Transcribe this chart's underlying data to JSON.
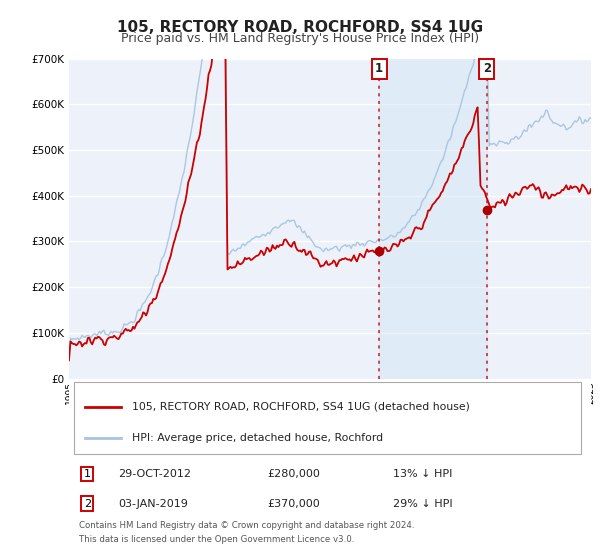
{
  "title": "105, RECTORY ROAD, ROCHFORD, SS4 1UG",
  "subtitle": "Price paid vs. HM Land Registry's House Price Index (HPI)",
  "ylim": [
    0,
    700000
  ],
  "yticks": [
    0,
    100000,
    200000,
    300000,
    400000,
    500000,
    600000,
    700000
  ],
  "ytick_labels": [
    "£0",
    "£100K",
    "£200K",
    "£300K",
    "£400K",
    "£500K",
    "£600K",
    "£700K"
  ],
  "hpi_color": "#a8c4e0",
  "price_color": "#cc0000",
  "marker_color": "#aa0000",
  "vline_color": "#cc0000",
  "shade_color": "#d0e4f5",
  "transaction1_x": 2012.83,
  "transaction1_y": 280000,
  "transaction1_label": "1",
  "transaction2_x": 2019.01,
  "transaction2_y": 370000,
  "transaction2_label": "2",
  "legend_line1": "105, RECTORY ROAD, ROCHFORD, SS4 1UG (detached house)",
  "legend_line2": "HPI: Average price, detached house, Rochford",
  "table_row1_num": "1",
  "table_row1_date": "29-OCT-2012",
  "table_row1_price": "£280,000",
  "table_row1_hpi": "13% ↓ HPI",
  "table_row2_num": "2",
  "table_row2_date": "03-JAN-2019",
  "table_row2_price": "£370,000",
  "table_row2_hpi": "29% ↓ HPI",
  "footnote1": "Contains HM Land Registry data © Crown copyright and database right 2024.",
  "footnote2": "This data is licensed under the Open Government Licence v3.0.",
  "bg_color": "#ffffff",
  "plot_bg_color": "#edf2fa",
  "grid_color": "#ffffff",
  "title_fontsize": 11,
  "subtitle_fontsize": 9,
  "xmin": 1995,
  "xmax": 2025
}
